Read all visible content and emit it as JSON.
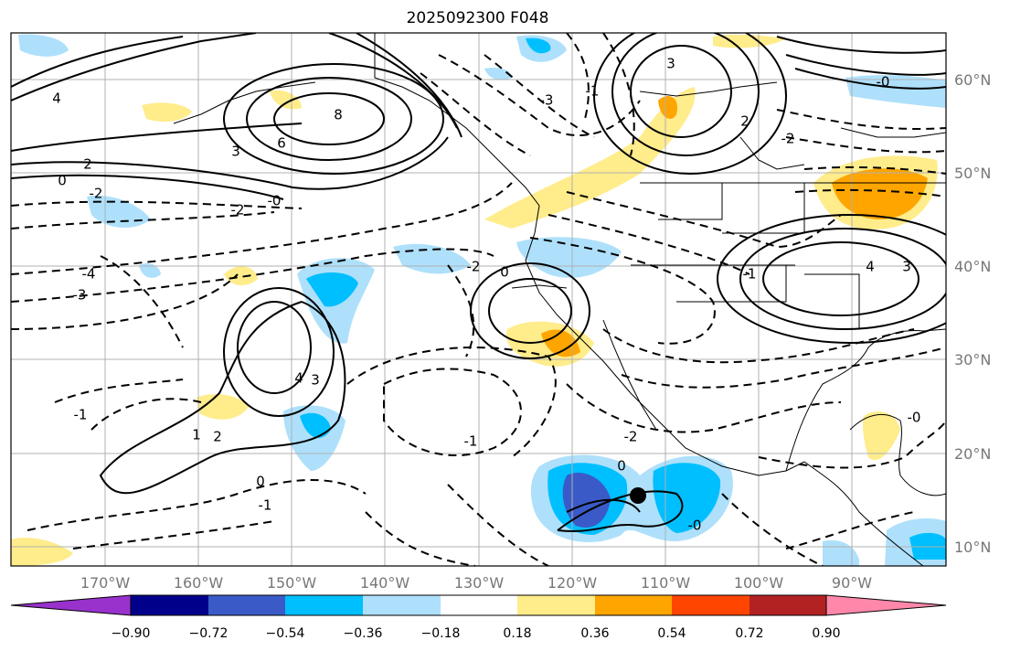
{
  "title": "2025092300 F048",
  "map": {
    "lon_labels": [
      "170°W",
      "160°W",
      "150°W",
      "140°W",
      "130°W",
      "120°W",
      "110°W",
      "100°W",
      "90°W"
    ],
    "lat_labels": [
      "60°N",
      "50°N",
      "40°N",
      "30°N",
      "20°N",
      "10°N"
    ],
    "lon_values": [
      -170,
      -160,
      -150,
      -140,
      -130,
      -120,
      -110,
      -100,
      -90
    ],
    "lat_values": [
      60,
      50,
      40,
      30,
      20,
      10
    ],
    "lon_range": [
      -180,
      -80
    ],
    "lat_range": [
      8,
      65
    ],
    "storm_marker": {
      "lon": -112.3,
      "lat": 15.6
    }
  },
  "contour_labels": [
    "8",
    "6",
    "3",
    "4",
    "2",
    "0",
    "-0",
    "-2",
    "-3",
    "-4",
    "-1",
    "4",
    "3",
    "1",
    "2",
    "-2",
    "0",
    "-1",
    "-2",
    "-3",
    "2",
    "3",
    "-2",
    "-1",
    "0",
    "-1",
    "4",
    "3",
    "-0",
    "-1",
    "-2",
    "0",
    "-0",
    "-0"
  ],
  "colorbar": {
    "ticks": [
      "−0.90",
      "−0.72",
      "−0.54",
      "−0.36",
      "−0.18",
      "0.18",
      "0.36",
      "0.54",
      "0.72",
      "0.90"
    ],
    "colors": [
      "#9932cc",
      "#00008b",
      "#3a5bc7",
      "#00bfff",
      "#aee0fb",
      "#ffffff",
      "#ffec8b",
      "#ffa500",
      "#ff4500",
      "#b22222",
      "#ff88aa"
    ]
  }
}
